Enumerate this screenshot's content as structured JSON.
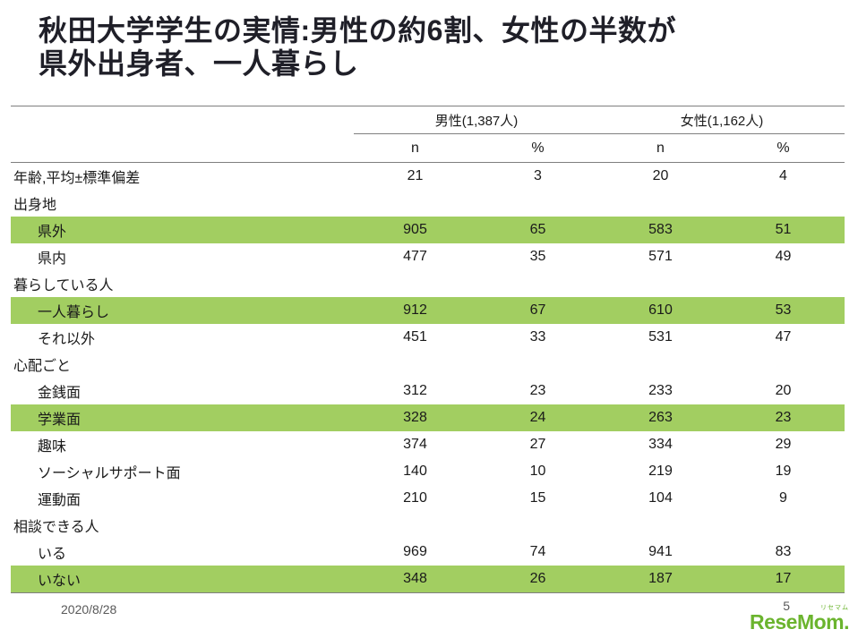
{
  "slide": {
    "title": "秋田大学学生の実情:男性の約6割、女性の半数が\n県外出身者、一人暮らし",
    "footer": {
      "date": "2020/8/28",
      "page_number": "5"
    },
    "logo": {
      "text": "ReseMom.",
      "ruby": "リセマム"
    }
  },
  "colors": {
    "highlight": "#a2ce61",
    "logo_green": "#6bb42e",
    "line": "#7f7f7f"
  },
  "chart_data": {
    "type": "table",
    "title": "秋田大学学生の実情:男性の約6割、女性の半数が県外出身者、一人暮らし",
    "group_headers": [
      "男性(1,387人)",
      "女性(1,162人)"
    ],
    "sub_headers": [
      "n",
      "%",
      "n",
      "%"
    ],
    "rows": [
      {
        "label": "年齢,平均±標準偏差",
        "section": false,
        "indent": false,
        "highlight": false,
        "values": [
          "21",
          "3",
          "20",
          "4"
        ]
      },
      {
        "label": "出身地",
        "section": true,
        "indent": false,
        "highlight": false,
        "values": [
          "",
          "",
          "",
          ""
        ]
      },
      {
        "label": "県外",
        "section": false,
        "indent": true,
        "highlight": true,
        "values": [
          "905",
          "65",
          "583",
          "51"
        ]
      },
      {
        "label": "県内",
        "section": false,
        "indent": true,
        "highlight": false,
        "values": [
          "477",
          "35",
          "571",
          "49"
        ]
      },
      {
        "label": "暮らしている人",
        "section": true,
        "indent": false,
        "highlight": false,
        "values": [
          "",
          "",
          "",
          ""
        ]
      },
      {
        "label": "一人暮らし",
        "section": false,
        "indent": true,
        "highlight": true,
        "values": [
          "912",
          "67",
          "610",
          "53"
        ]
      },
      {
        "label": "それ以外",
        "section": false,
        "indent": true,
        "highlight": false,
        "values": [
          "451",
          "33",
          "531",
          "47"
        ]
      },
      {
        "label": "心配ごと",
        "section": true,
        "indent": false,
        "highlight": false,
        "values": [
          "",
          "",
          "",
          ""
        ]
      },
      {
        "label": "金銭面",
        "section": false,
        "indent": true,
        "highlight": false,
        "values": [
          "312",
          "23",
          "233",
          "20"
        ]
      },
      {
        "label": "学業面",
        "section": false,
        "indent": true,
        "highlight": true,
        "values": [
          "328",
          "24",
          "263",
          "23"
        ]
      },
      {
        "label": "趣味",
        "section": false,
        "indent": true,
        "highlight": false,
        "values": [
          "374",
          "27",
          "334",
          "29"
        ]
      },
      {
        "label": "ソーシャルサポート面",
        "section": false,
        "indent": true,
        "highlight": false,
        "values": [
          "140",
          "10",
          "219",
          "19"
        ]
      },
      {
        "label": "運動面",
        "section": false,
        "indent": true,
        "highlight": false,
        "values": [
          "210",
          "15",
          "104",
          "9"
        ]
      },
      {
        "label": "相談できる人",
        "section": true,
        "indent": false,
        "highlight": false,
        "values": [
          "",
          "",
          "",
          ""
        ]
      },
      {
        "label": "いる",
        "section": false,
        "indent": true,
        "highlight": false,
        "values": [
          "969",
          "74",
          "941",
          "83"
        ]
      },
      {
        "label": "いない",
        "section": false,
        "indent": true,
        "highlight": true,
        "values": [
          "348",
          "26",
          "187",
          "17"
        ]
      }
    ]
  }
}
